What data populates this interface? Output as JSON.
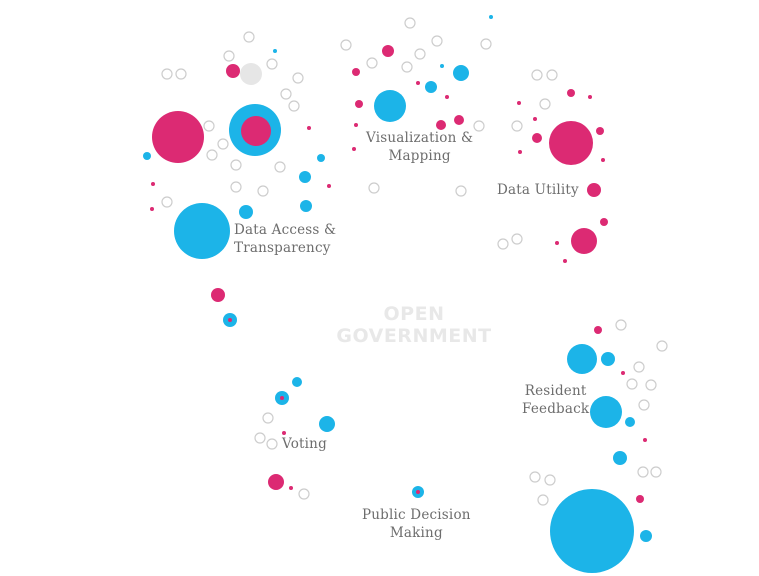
{
  "title": {
    "line1": "OPEN",
    "line2": "GOVERNMENT"
  },
  "clusters": [
    {
      "id": "data-access",
      "line1": "Data Access &",
      "line2": "Transparency"
    },
    {
      "id": "visualization",
      "line1": "Visualization &",
      "line2": "Mapping"
    },
    {
      "id": "data-utility",
      "line1": "Data Utility",
      "line2": ""
    },
    {
      "id": "resident-feedback",
      "line1": "Resident",
      "line2": "Feedback"
    },
    {
      "id": "voting",
      "line1": "Voting",
      "line2": ""
    },
    {
      "id": "public-decision",
      "line1": "Public Decision",
      "line2": "Making"
    }
  ],
  "colors": {
    "blue": "#1cb4e8",
    "pink": "#dc2a73",
    "grey_outline": "#cdcdcd",
    "grey_fill": "#e6e6e6",
    "label": "#6d6d6d",
    "center_title": "#e8e8e8"
  }
}
